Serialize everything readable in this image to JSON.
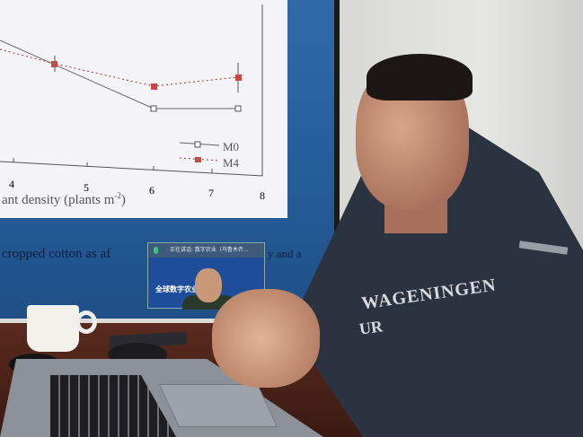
{
  "slide": {
    "x_ticks": [
      "4",
      "5",
      "6",
      "7",
      "8"
    ],
    "x_label": "ant density (plants m",
    "x_label_sup": "-2",
    "x_label_end": ")",
    "legend": [
      {
        "label": "M0",
        "marker": "open-square",
        "line": "solid"
      },
      {
        "label": "M4",
        "marker": "filled-red-square",
        "line": "dotted"
      }
    ],
    "caption_left": "cropped cotton as af",
    "caption_right": "y and a"
  },
  "video_call": {
    "speaking_label": "正在讲话: 数字农业（乌鲁木齐...",
    "banner_text": "全球数字农业"
  },
  "hoodie": {
    "line1": "WAGENINGEN",
    "line2": "UR"
  },
  "colors": {
    "screen_blue": "#2f6aa8",
    "slide_bg": "#f4f4f6",
    "series_m4": "#c84848",
    "hoodie": "#2b3240"
  }
}
